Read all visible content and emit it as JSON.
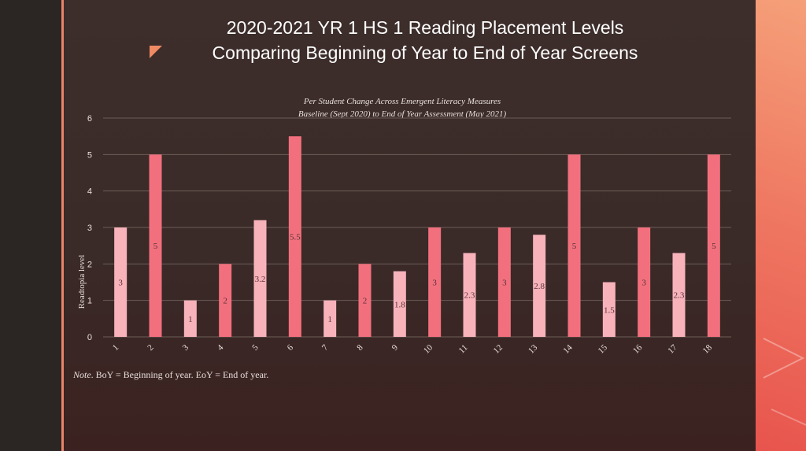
{
  "slide": {
    "title_line1": "2020-2021 YR 1 HS 1 Reading Placement Levels",
    "title_line2": "Comparing Beginning of Year to End of Year Screens",
    "note_label": "Note",
    "note_text": ". BoY = Beginning of year. EoY = End of year.",
    "bullet_color": "#f08a63"
  },
  "chart_data": {
    "type": "bar",
    "title": "Per Student Change Across Emergent Literacy Measures",
    "subtitle": "Baseline (Sept 2020) to End of Year Assessment (May 2021)",
    "xlabel": "",
    "ylabel": "Readtopia level",
    "ylim": [
      0,
      6
    ],
    "yticks": [
      0,
      1,
      2,
      3,
      4,
      5,
      6
    ],
    "grid": true,
    "categories": [
      "1",
      "2",
      "3",
      "4",
      "5",
      "6",
      "7",
      "8",
      "9",
      "10",
      "11",
      "12",
      "13",
      "14",
      "15",
      "16",
      "17",
      "18"
    ],
    "values": [
      3,
      5,
      1,
      2,
      3.2,
      5.5,
      1,
      2,
      1.8,
      3,
      2.3,
      3,
      2.8,
      5,
      1.5,
      3,
      2.3,
      5
    ],
    "data_labels": [
      "3",
      "5",
      "1",
      "2",
      "3.2",
      "5.5",
      "1",
      "2",
      "1.8",
      "3",
      "2.3",
      "3",
      "2.8",
      "5",
      "1.5",
      "3",
      "2.3",
      "5"
    ],
    "bar_colors": [
      "#f7b2ba",
      "#f2707e",
      "#f7b2ba",
      "#f2707e",
      "#f7b2ba",
      "#f2707e",
      "#f7b2ba",
      "#f2707e",
      "#f7b2ba",
      "#f2707e",
      "#f7b2ba",
      "#f2707e",
      "#f7b2ba",
      "#f2707e",
      "#f7b2ba",
      "#f2707e",
      "#f7b2ba",
      "#f2707e"
    ]
  }
}
